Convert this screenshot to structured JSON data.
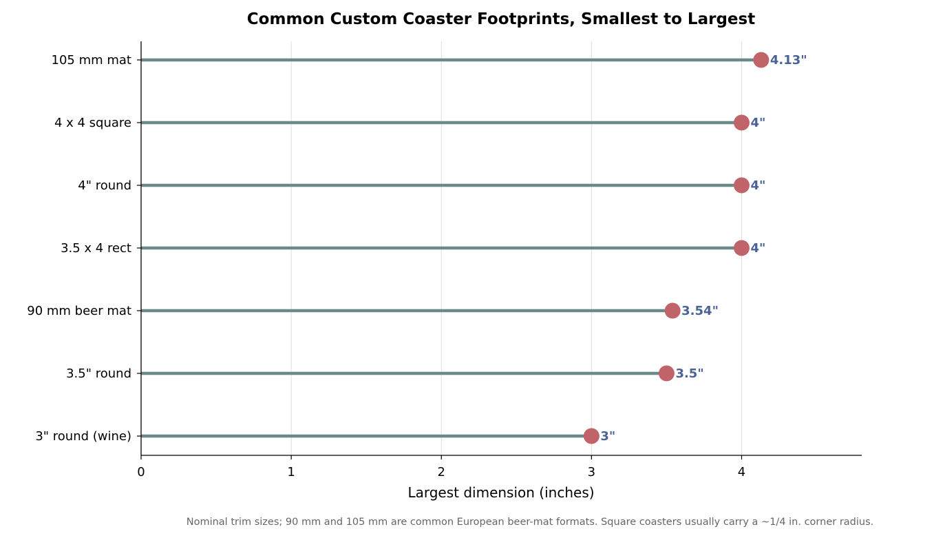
{
  "chart_data": {
    "type": "lollipop",
    "orientation": "horizontal",
    "title": "Common Custom Coaster Footprints, Smallest to Largest",
    "xlabel": "Largest dimension (inches)",
    "ylabel": "",
    "xlim": [
      0,
      4.8
    ],
    "xticks": [
      "0",
      "1",
      "2",
      "3",
      "4"
    ],
    "grid": "vertical",
    "categories": [
      "3\" round (wine)",
      "3.5\" round",
      "90 mm beer mat",
      "3.5 x 4 rect",
      "4\" round",
      "4 x 4 square",
      "105 mm mat"
    ],
    "values": [
      3,
      3.5,
      3.54,
      4,
      4,
      4,
      4.13
    ],
    "value_labels": [
      "3\"",
      "3.5\"",
      "3.54\"",
      "4\"",
      "4\"",
      "4\"",
      "4.13\""
    ],
    "note": "Nominal trim sizes; 90 mm and 105 mm are common European beer-mat formats. Square coasters usually carry a ~1/4 in. corner radius."
  },
  "colors": {
    "stem": "#6b8a87",
    "marker": "#c0646a",
    "label": "#4a6296",
    "grid": "#dddddd",
    "axis": "#000000"
  }
}
